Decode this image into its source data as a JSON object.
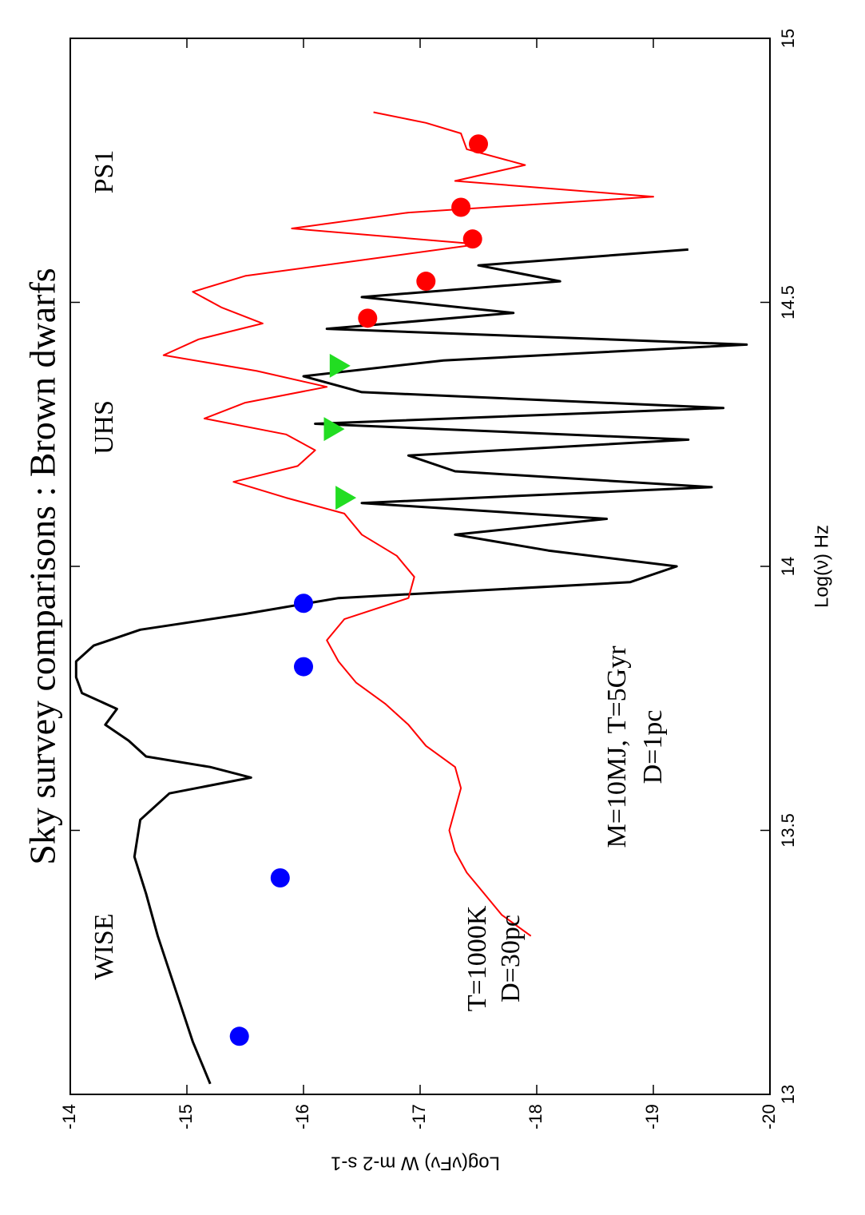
{
  "chart_data": {
    "type": "line",
    "title": "Sky survey comparisons : Brown dwarfs",
    "xlabel": "Log(ν) Hz",
    "ylabel": "Log(νFν) W m-2 s-1",
    "xlim": [
      13,
      15
    ],
    "ylim": [
      -20,
      -14
    ],
    "x_ticks": [
      "13",
      "13.5",
      "14",
      "14.5",
      "15"
    ],
    "y_ticks": [
      "-14",
      "-15",
      "-16",
      "-17",
      "-18",
      "-19",
      "-20"
    ],
    "orientation": "rotated 90 degrees counter-clockwise",
    "annotations": {
      "wise": "WISE",
      "uhs": "UHS",
      "ps1": "PS1",
      "model_red_line1": "T=1000K",
      "model_red_line2": "D=30pc",
      "model_black_line1": "M=10MJ, T=5Gyr",
      "model_black_line2": "D=1pc"
    },
    "series": [
      {
        "color": "#000000",
        "style": "line",
        "x": [
          13.02,
          13.1,
          13.2,
          13.3,
          13.38,
          13.45,
          13.52,
          13.57,
          13.6,
          13.62,
          13.64,
          13.67,
          13.7,
          13.73,
          13.76,
          13.79,
          13.82,
          13.85,
          13.88,
          13.91,
          13.94,
          13.97,
          14.0,
          14.03,
          14.06,
          14.09,
          14.12,
          14.15,
          14.18,
          14.21,
          14.24,
          14.27,
          14.3,
          14.33,
          14.36,
          14.39,
          14.42,
          14.45,
          14.48,
          14.51,
          14.54,
          14.57,
          14.6
        ],
        "y": [
          -15.2,
          -15.05,
          -14.9,
          -14.75,
          -14.65,
          -14.55,
          -14.6,
          -14.85,
          -15.55,
          -15.2,
          -14.65,
          -14.5,
          -14.3,
          -14.4,
          -14.1,
          -14.05,
          -14.05,
          -14.2,
          -14.6,
          -15.5,
          -16.3,
          -18.8,
          -19.2,
          -18.1,
          -17.3,
          -18.6,
          -16.5,
          -19.5,
          -17.3,
          -16.9,
          -19.3,
          -16.1,
          -19.6,
          -16.5,
          -16.0,
          -17.2,
          -19.8,
          -16.2,
          -17.8,
          -16.5,
          -18.2,
          -17.5,
          -19.3
        ]
      },
      {
        "color": "#ff0000",
        "style": "line",
        "x": [
          13.3,
          13.34,
          13.38,
          13.42,
          13.46,
          13.5,
          13.54,
          13.58,
          13.62,
          13.66,
          13.7,
          13.74,
          13.78,
          13.82,
          13.86,
          13.9,
          13.94,
          13.98,
          14.02,
          14.06,
          14.1,
          14.13,
          14.16,
          14.19,
          14.22,
          14.25,
          14.28,
          14.31,
          14.34,
          14.37,
          14.4,
          14.43,
          14.46,
          14.49,
          14.52,
          14.55,
          14.58,
          14.61,
          14.64,
          14.67,
          14.7,
          14.73,
          14.76,
          14.79,
          14.82,
          14.84,
          14.86
        ],
        "y": [
          -17.95,
          -17.7,
          -17.55,
          -17.4,
          -17.3,
          -17.25,
          -17.3,
          -17.35,
          -17.3,
          -17.05,
          -16.9,
          -16.7,
          -16.45,
          -16.3,
          -16.2,
          -16.35,
          -16.9,
          -16.95,
          -16.8,
          -16.5,
          -16.35,
          -15.85,
          -15.4,
          -15.95,
          -16.1,
          -15.85,
          -15.15,
          -15.5,
          -16.2,
          -15.6,
          -14.8,
          -15.1,
          -15.65,
          -15.3,
          -15.05,
          -15.5,
          -16.5,
          -17.5,
          -15.9,
          -16.9,
          -19.0,
          -17.3,
          -17.9,
          -17.4,
          -17.35,
          -17.05,
          -16.6
        ]
      },
      {
        "name": "WISE",
        "color": "#0000ff",
        "style": "circle",
        "x": [
          13.11,
          13.41,
          13.81,
          13.93
        ],
        "y": [
          -15.45,
          -15.8,
          -16.0,
          -16.0
        ]
      },
      {
        "name": "UHS",
        "color": "#22dd22",
        "style": "triangle",
        "x": [
          14.13,
          14.26,
          14.38
        ],
        "y": [
          -16.35,
          -16.25,
          -16.3
        ]
      },
      {
        "name": "PS1",
        "color": "#ff0000",
        "style": "circle",
        "x": [
          14.47,
          14.54,
          14.62,
          14.68,
          14.8
        ],
        "y": [
          -16.55,
          -17.05,
          -17.45,
          -17.35,
          -17.5
        ]
      }
    ]
  }
}
